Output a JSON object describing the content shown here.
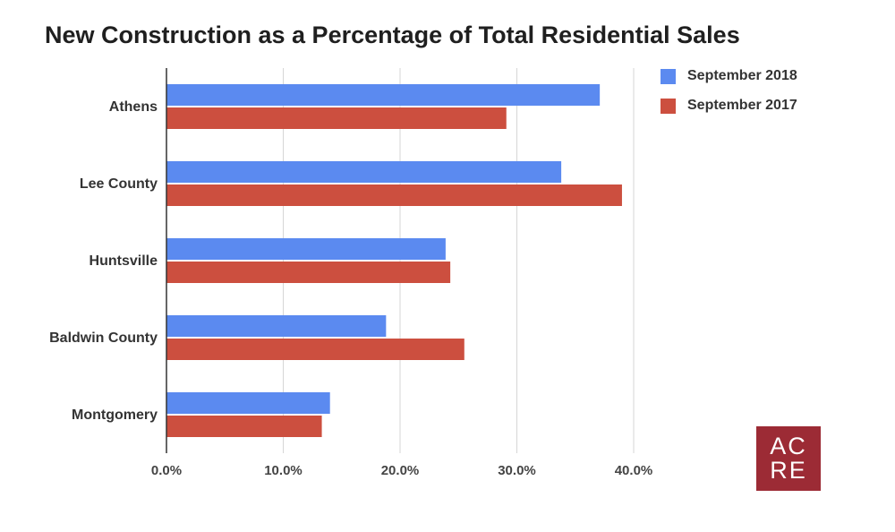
{
  "title": "New Construction as a Percentage of Total Residential Sales",
  "colors": {
    "series_2018": "#5b8af0",
    "series_2017": "#cc4f3f",
    "logo_bg": "#9c2b35",
    "grid": "#d6d6d6",
    "axis": "#333333"
  },
  "logo": {
    "line1": "AC",
    "line2": "RE"
  },
  "chart_data": {
    "type": "bar",
    "orientation": "horizontal",
    "title": "New Construction as a Percentage of Total Residential Sales",
    "categories": [
      "Athens",
      "Lee County",
      "Huntsville",
      "Baldwin County",
      "Montgomery"
    ],
    "series": [
      {
        "name": "September 2018",
        "color": "#5b8af0",
        "values": [
          37.1,
          33.8,
          23.9,
          18.8,
          14.0
        ]
      },
      {
        "name": "September 2017",
        "color": "#cc4f3f",
        "values": [
          29.1,
          39.0,
          24.3,
          25.5,
          13.3
        ]
      }
    ],
    "xticks": [
      "0.0%",
      "10.0%",
      "20.0%",
      "30.0%",
      "40.0%"
    ],
    "xlim": [
      0,
      40
    ],
    "xlabel": "",
    "ylabel": "",
    "grid": true,
    "legend_position": "top-right"
  }
}
